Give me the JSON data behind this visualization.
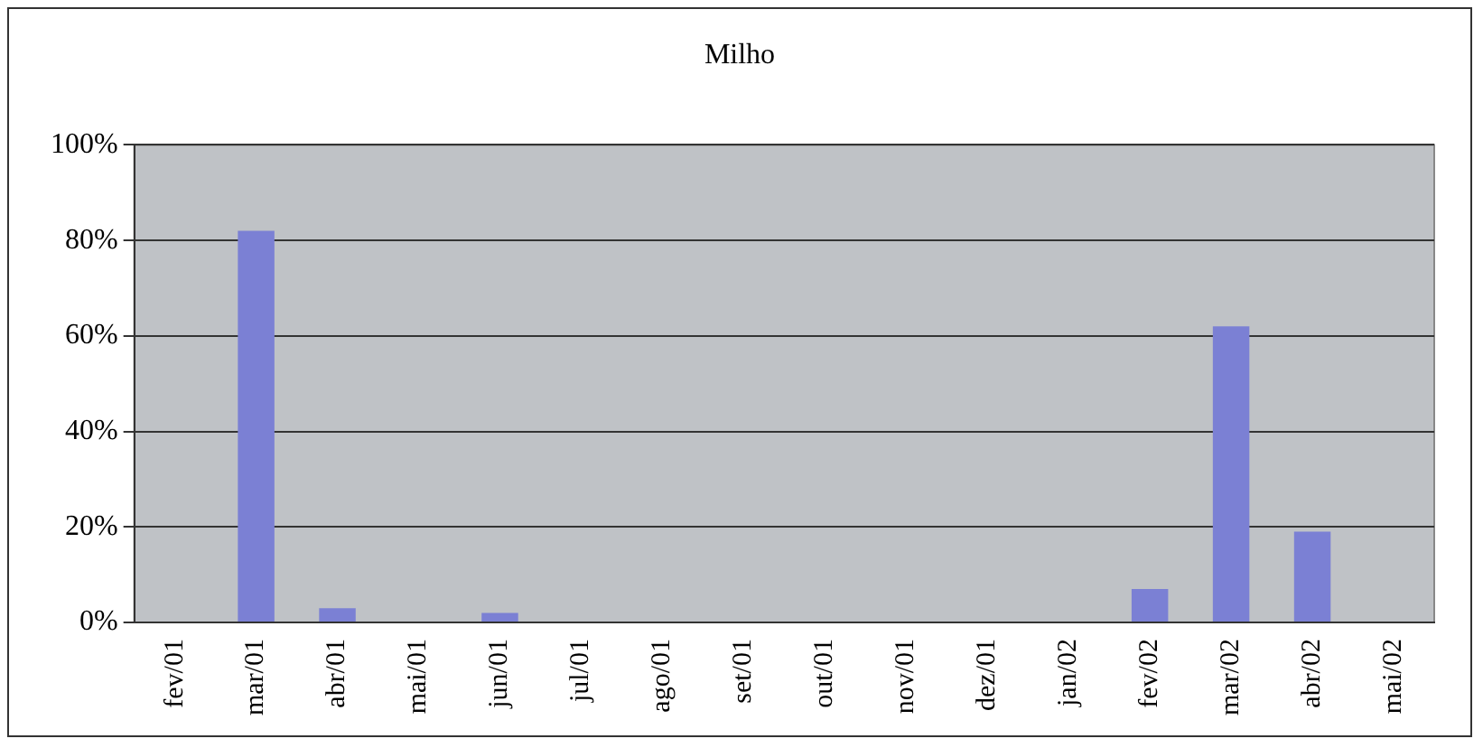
{
  "chart_data": {
    "type": "bar",
    "title": "Milho",
    "categories": [
      "fev/01",
      "mar/01",
      "abr/01",
      "mai/01",
      "jun/01",
      "jul/01",
      "ago/01",
      "set/01",
      "out/01",
      "nov/01",
      "dez/01",
      "jan/02",
      "fev/02",
      "mar/02",
      "abr/02",
      "mai/02"
    ],
    "values": [
      0,
      82,
      3,
      0,
      2,
      0,
      0,
      0,
      0,
      0,
      0,
      0,
      7,
      62,
      19,
      0
    ],
    "color": "#7b80d4",
    "ylim": [
      0,
      100
    ],
    "yticks": [
      {
        "value": 0,
        "label": "0%"
      },
      {
        "value": 20,
        "label": "20%"
      },
      {
        "value": 40,
        "label": "40%"
      },
      {
        "value": 60,
        "label": "60%"
      },
      {
        "value": 80,
        "label": "80%"
      },
      {
        "value": 100,
        "label": "100%"
      }
    ],
    "grid": "y",
    "legend": false
  }
}
